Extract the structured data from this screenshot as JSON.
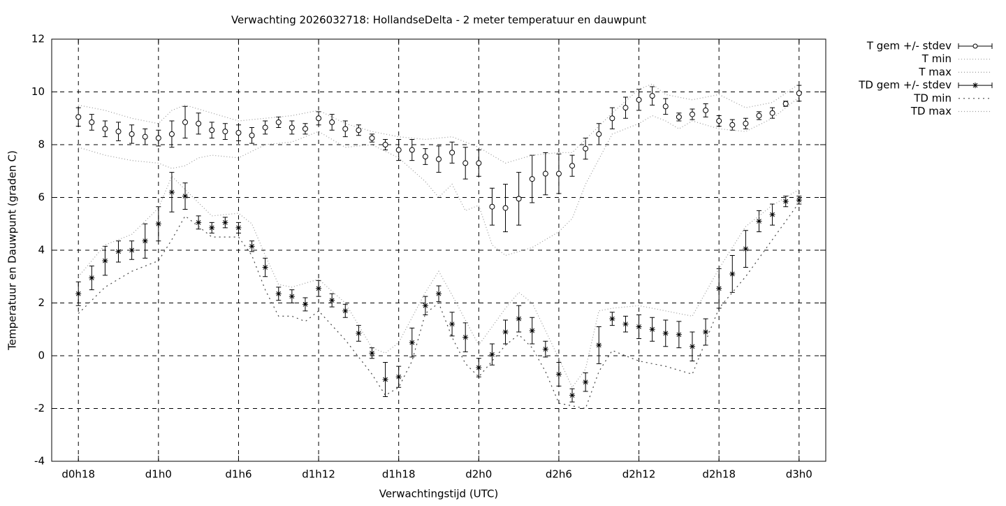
{
  "chart_data": {
    "type": "line",
    "title": "Verwachting 2026032718: HollandseDelta - 2 meter temperatuur en dauwpunt",
    "xlabel": "Verwachtingstijd (UTC)",
    "ylabel": "Temperatuur en Dauwpunt (graden C)",
    "xlim": [
      16,
      74
    ],
    "ylim": [
      -4,
      12
    ],
    "xticks": [
      {
        "value": 18,
        "label": "d0h18"
      },
      {
        "value": 24,
        "label": "d1h0"
      },
      {
        "value": 30,
        "label": "d1h6"
      },
      {
        "value": 36,
        "label": "d1h12"
      },
      {
        "value": 42,
        "label": "d1h18"
      },
      {
        "value": 48,
        "label": "d2h0"
      },
      {
        "value": 54,
        "label": "d2h6"
      },
      {
        "value": 60,
        "label": "d2h12"
      },
      {
        "value": 66,
        "label": "d2h18"
      },
      {
        "value": 72,
        "label": "d3h0"
      }
    ],
    "yticks": [
      -4,
      -2,
      0,
      2,
      4,
      6,
      8,
      10,
      12
    ],
    "grid": true,
    "legend": "right",
    "series": [
      {
        "name": "T gem +/- stdev",
        "style": "errorbar",
        "marker": "circle",
        "color": "#000000",
        "x": [
          18,
          19,
          20,
          21,
          22,
          23,
          24,
          25,
          26,
          27,
          28,
          29,
          30,
          31,
          32,
          33,
          34,
          35,
          36,
          37,
          38,
          39,
          40,
          41,
          42,
          43,
          44,
          45,
          46,
          47,
          48,
          49,
          50,
          51,
          52,
          53,
          54,
          55,
          56,
          57,
          58,
          59,
          60,
          61,
          62,
          63,
          64,
          65,
          66,
          67,
          68,
          69,
          70,
          71,
          72
        ],
        "values": [
          9.05,
          8.85,
          8.6,
          8.5,
          8.4,
          8.3,
          8.25,
          8.4,
          8.85,
          8.8,
          8.55,
          8.5,
          8.45,
          8.35,
          8.65,
          8.85,
          8.65,
          8.6,
          9.0,
          8.85,
          8.6,
          8.55,
          8.25,
          8.0,
          7.8,
          7.8,
          7.55,
          7.45,
          7.7,
          7.3,
          7.3,
          5.65,
          5.6,
          5.95,
          6.7,
          6.9,
          6.9,
          7.2,
          7.85,
          8.4,
          9.0,
          9.4,
          9.7,
          9.85,
          9.45,
          9.05,
          9.15,
          9.3,
          8.9,
          8.75,
          8.8,
          9.1,
          9.2,
          9.55,
          9.95
        ],
        "errors": [
          0.35,
          0.3,
          0.3,
          0.35,
          0.35,
          0.3,
          0.3,
          0.5,
          0.6,
          0.4,
          0.3,
          0.3,
          0.3,
          0.3,
          0.25,
          0.2,
          0.25,
          0.2,
          0.25,
          0.3,
          0.3,
          0.2,
          0.15,
          0.2,
          0.4,
          0.4,
          0.3,
          0.5,
          0.4,
          0.6,
          0.5,
          0.7,
          0.9,
          1.0,
          0.9,
          0.8,
          0.75,
          0.4,
          0.4,
          0.4,
          0.4,
          0.4,
          0.4,
          0.35,
          0.3,
          0.15,
          0.2,
          0.25,
          0.2,
          0.2,
          0.2,
          0.15,
          0.2,
          0.1,
          0.3
        ]
      },
      {
        "name": "T min",
        "style": "dotted",
        "color": "#999999",
        "x": [
          18,
          20,
          22,
          24,
          25,
          26,
          27,
          28,
          30,
          32,
          34,
          36,
          38,
          40,
          42,
          44,
          45,
          46,
          47,
          48,
          49,
          50,
          52,
          54,
          55,
          56,
          58,
          60,
          61,
          62,
          63,
          64,
          66,
          68,
          70,
          72
        ],
        "values": [
          7.9,
          7.6,
          7.4,
          7.3,
          7.1,
          7.2,
          7.5,
          7.6,
          7.5,
          8.0,
          8.1,
          8.5,
          7.9,
          8.0,
          7.5,
          6.6,
          6.0,
          6.5,
          5.5,
          5.7,
          4.2,
          3.8,
          4.1,
          4.7,
          5.2,
          6.5,
          8.4,
          8.8,
          9.1,
          8.9,
          8.6,
          8.9,
          8.6,
          8.5,
          9.0,
          9.8
        ]
      },
      {
        "name": "T max",
        "style": "dotted",
        "color": "#999999",
        "x": [
          18,
          20,
          22,
          24,
          25,
          26,
          28,
          30,
          32,
          34,
          36,
          38,
          40,
          42,
          44,
          46,
          48,
          50,
          52,
          54,
          55,
          56,
          58,
          60,
          61,
          62,
          64,
          66,
          68,
          70,
          72
        ],
        "values": [
          9.5,
          9.3,
          9.0,
          8.8,
          9.3,
          9.5,
          9.2,
          8.9,
          9.0,
          9.1,
          9.3,
          8.8,
          8.5,
          8.3,
          8.2,
          8.3,
          7.9,
          7.3,
          7.6,
          7.7,
          7.7,
          8.2,
          9.2,
          10.1,
          10.3,
          9.9,
          9.7,
          9.9,
          9.4,
          9.6,
          10.3
        ]
      },
      {
        "name": "TD gem +/- stdev",
        "style": "errorbar",
        "marker": "star",
        "color": "#000000",
        "x": [
          18,
          19,
          20,
          21,
          22,
          23,
          24,
          25,
          26,
          27,
          28,
          29,
          30,
          31,
          32,
          33,
          34,
          35,
          36,
          37,
          38,
          39,
          40,
          41,
          42,
          43,
          44,
          45,
          46,
          47,
          48,
          49,
          50,
          51,
          52,
          53,
          54,
          55,
          56,
          57,
          58,
          59,
          60,
          61,
          62,
          63,
          64,
          65,
          66,
          67,
          68,
          69,
          70,
          71,
          72
        ],
        "values": [
          2.35,
          2.95,
          3.6,
          3.95,
          4.0,
          4.35,
          5.0,
          6.2,
          6.05,
          5.05,
          4.85,
          5.05,
          4.85,
          4.15,
          3.35,
          2.35,
          2.25,
          1.95,
          2.55,
          2.1,
          1.7,
          0.85,
          0.1,
          -0.9,
          -0.8,
          0.5,
          1.9,
          2.35,
          1.2,
          0.7,
          -0.45,
          0.05,
          0.9,
          1.4,
          0.95,
          0.25,
          -0.7,
          -1.5,
          -1.0,
          0.4,
          1.4,
          1.2,
          1.1,
          1.0,
          0.85,
          0.8,
          0.35,
          0.9,
          2.55,
          3.1,
          4.05,
          5.1,
          5.35,
          5.85,
          5.9
        ],
        "errors": [
          0.45,
          0.45,
          0.55,
          0.4,
          0.35,
          0.65,
          0.65,
          0.75,
          0.5,
          0.25,
          0.2,
          0.2,
          0.2,
          0.2,
          0.35,
          0.25,
          0.25,
          0.25,
          0.3,
          0.25,
          0.25,
          0.3,
          0.2,
          0.65,
          0.4,
          0.55,
          0.35,
          0.3,
          0.45,
          0.55,
          0.35,
          0.4,
          0.45,
          0.5,
          0.5,
          0.3,
          0.45,
          0.25,
          0.35,
          0.7,
          0.25,
          0.3,
          0.45,
          0.45,
          0.5,
          0.5,
          0.55,
          0.5,
          0.75,
          0.7,
          0.7,
          0.4,
          0.4,
          0.2,
          0.15
        ]
      },
      {
        "name": "TD min",
        "style": "dotted-wide",
        "color": "#444444",
        "x": [
          18,
          20,
          22,
          24,
          25,
          26,
          28,
          30,
          31,
          32,
          33,
          34,
          35,
          36,
          38,
          40,
          41,
          42,
          43,
          44,
          45,
          46,
          47,
          48,
          50,
          51,
          52,
          53,
          54,
          55,
          56,
          57,
          58,
          60,
          62,
          64,
          66,
          68,
          70,
          72
        ],
        "values": [
          1.6,
          2.6,
          3.2,
          3.6,
          4.4,
          5.3,
          4.5,
          4.5,
          3.8,
          2.5,
          1.5,
          1.5,
          1.3,
          1.7,
          0.6,
          -0.7,
          -1.5,
          -1.2,
          -0.2,
          1.6,
          2.0,
          0.7,
          -0.3,
          -0.8,
          0.4,
          0.8,
          0.3,
          -0.6,
          -1.8,
          -1.9,
          -2.0,
          -0.6,
          0.2,
          -0.2,
          -0.4,
          -0.7,
          1.8,
          3.0,
          4.4,
          5.8
        ]
      },
      {
        "name": "TD max",
        "style": "dotted",
        "color": "#999999",
        "x": [
          18,
          20,
          22,
          24,
          25,
          26,
          28,
          30,
          31,
          32,
          33,
          34,
          36,
          38,
          40,
          41,
          42,
          44,
          45,
          46,
          48,
          50,
          51,
          52,
          54,
          55,
          56,
          57,
          58,
          60,
          62,
          64,
          66,
          68,
          70,
          72
        ],
        "values": [
          3.0,
          4.2,
          4.6,
          5.6,
          6.8,
          6.3,
          5.3,
          5.4,
          5.0,
          3.8,
          2.7,
          2.6,
          2.9,
          2.0,
          0.3,
          0.1,
          0.5,
          2.4,
          3.2,
          2.3,
          0.4,
          1.8,
          2.4,
          2.0,
          -0.1,
          -1.2,
          -0.5,
          1.7,
          1.8,
          1.9,
          1.7,
          1.5,
          3.3,
          4.9,
          5.7,
          6.3
        ]
      }
    ]
  }
}
